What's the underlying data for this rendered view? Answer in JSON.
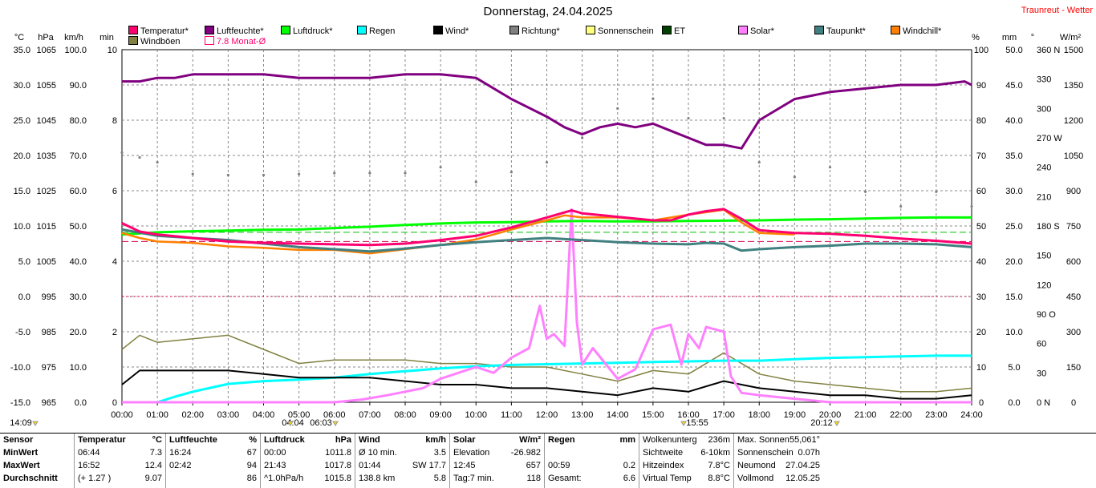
{
  "title": "Donnerstag, 24.04.2025",
  "brand": "Traunreut - Wetter",
  "units_left": [
    "°C",
    "hPa",
    "km/h",
    "min"
  ],
  "units_right": [
    "%",
    "mm",
    "°",
    "W/m²"
  ],
  "legend": [
    {
      "label": "Temperatur*",
      "color": "#ff0070"
    },
    {
      "label": "Luftfeuchte*",
      "color": "#800080"
    },
    {
      "label": "Luftdruck*",
      "color": "#00ff00"
    },
    {
      "label": "Regen",
      "color": "#00ffff"
    },
    {
      "label": "Wind*",
      "color": "#000000"
    },
    {
      "label": "Richtung*",
      "color": "#808080"
    },
    {
      "label": "Sonnenschein",
      "color": "#ffff80"
    },
    {
      "label": "ET",
      "color": "#004000"
    },
    {
      "label": "Solar*",
      "color": "#ff80ff"
    },
    {
      "label": "Taupunkt*",
      "color": "#408080"
    },
    {
      "label": "Windchill*",
      "color": "#ff8000"
    },
    {
      "label": "Windböen",
      "color": "#808040"
    },
    {
      "label": "7.8 Monat-Ø",
      "color": "#ff0070"
    }
  ],
  "chart_data": {
    "type": "line",
    "title": "Donnerstag, 24.04.2025",
    "x_ticks": [
      "00:00",
      "01:00",
      "02:00",
      "03:00",
      "04:00",
      "05:00",
      "06:00",
      "07:00",
      "08:00",
      "09:00",
      "10:00",
      "11:00",
      "12:00",
      "13:00",
      "14:00",
      "15:00",
      "16:00",
      "17:00",
      "18:00",
      "19:00",
      "20:00",
      "21:00",
      "22:00",
      "23:00",
      "24:00"
    ],
    "axes_left": {
      "temp_C": [
        "35.0",
        "30.0",
        "25.0",
        "20.0",
        "15.0",
        "10.0",
        "5.0",
        "0.0",
        "-5.0",
        "-10.0",
        "-15.0"
      ],
      "pressure_hPa": [
        "1065",
        "1055",
        "1045",
        "1035",
        "1025",
        "1015",
        "1005",
        "995",
        "985",
        "975",
        "965"
      ],
      "wind_kmh": [
        "100.0",
        "90.0",
        "80.0",
        "70.0",
        "60.0",
        "50.0",
        "40.0",
        "30.0",
        "20.0",
        "10.0",
        "0.0"
      ],
      "min": [
        "10",
        "8",
        "6",
        "4",
        "2",
        "0"
      ]
    },
    "axes_right": {
      "humidity_pct": [
        "100",
        "90",
        "80",
        "70",
        "60",
        "50",
        "40",
        "30",
        "20",
        "10",
        "0"
      ],
      "rain_mm": [
        "50.0",
        "45.0",
        "40.0",
        "35.0",
        "30.0",
        "25.0",
        "20.0",
        "15.0",
        "10.0",
        "5.0",
        "0.0"
      ],
      "dir_deg": [
        "360 N",
        "330",
        "300",
        "270 W",
        "240",
        "210",
        "180 S",
        "150",
        "120",
        "90 O",
        "60",
        "30",
        "0 N"
      ],
      "solar_wm2": [
        "1500",
        "1350",
        "1200",
        "1050",
        "900",
        "750",
        "600",
        "450",
        "300",
        "150",
        "0"
      ]
    },
    "temp_min": -15,
    "temp_max": 35,
    "series": [
      {
        "name": "Temperatur*",
        "x": [
          0,
          0.5,
          1,
          2,
          3,
          4,
          5,
          6,
          7,
          8,
          9,
          10,
          11,
          12,
          12.7,
          13,
          14,
          15,
          15.5,
          16,
          16.5,
          17,
          17.5,
          18,
          19,
          20,
          21,
          22,
          23,
          24
        ],
        "y": [
          10.4,
          9.2,
          8.8,
          8.3,
          7.8,
          7.6,
          7.5,
          7.4,
          7.3,
          7.5,
          8.0,
          8.6,
          9.8,
          11.2,
          12.2,
          11.8,
          11.3,
          10.8,
          10.8,
          11.6,
          12.1,
          12.4,
          11.0,
          9.4,
          9.0,
          8.9,
          8.6,
          8.2,
          7.9,
          7.5
        ]
      },
      {
        "name": "Luftfeuchte*",
        "x": [
          0,
          0.5,
          1,
          1.5,
          2,
          2.5,
          3,
          3.5,
          4,
          5,
          6,
          7,
          8,
          9,
          10,
          11,
          12,
          12.5,
          13,
          13.5,
          14,
          14.5,
          15,
          15.5,
          16,
          16.5,
          17,
          17.5,
          18,
          19,
          20,
          21,
          22,
          23,
          23.8,
          24
        ],
        "y": [
          91,
          91,
          92,
          92,
          93,
          93,
          93,
          93,
          93,
          92,
          92,
          92,
          93,
          93,
          92,
          86,
          81,
          78,
          76,
          78,
          79,
          78,
          79,
          77,
          75,
          73,
          73,
          72,
          80,
          86,
          88,
          89,
          90,
          90,
          91,
          90
        ]
      },
      {
        "name": "Luftdruck*",
        "x": [
          0,
          1,
          2,
          3,
          4,
          5,
          6,
          7,
          8,
          9,
          10,
          11,
          12,
          13,
          14,
          15,
          16,
          17,
          18,
          19,
          20,
          21,
          22,
          23,
          24
        ],
        "y": [
          1012.6,
          1013.2,
          1013.5,
          1013.7,
          1013.9,
          1014.0,
          1014.4,
          1014.8,
          1015.3,
          1015.7,
          1016.0,
          1016.1,
          1016.3,
          1016.4,
          1016.3,
          1016.3,
          1016.4,
          1016.5,
          1016.6,
          1016.8,
          1016.9,
          1017.1,
          1017.3,
          1017.4,
          1017.4
        ]
      },
      {
        "name": "Taupunkt*",
        "x": [
          0,
          1,
          2,
          3,
          4,
          5,
          6,
          7,
          8,
          9,
          10,
          11,
          12,
          13,
          14,
          15,
          16,
          16.5,
          17,
          17.5,
          18,
          19,
          20,
          21,
          22,
          23,
          24
        ],
        "y": [
          9.5,
          8.6,
          8.3,
          8.0,
          7.5,
          7.0,
          6.7,
          6.4,
          6.8,
          7.3,
          7.7,
          8.0,
          8.3,
          8.0,
          7.7,
          7.5,
          7.4,
          7.6,
          7.5,
          6.5,
          6.7,
          7.0,
          7.2,
          7.5,
          7.5,
          7.4,
          7.0
        ]
      },
      {
        "name": "Windchill*",
        "x": [
          0,
          0.5,
          1,
          2,
          3,
          4,
          5,
          6,
          7,
          8,
          9,
          10,
          11,
          12,
          12.5,
          13,
          14,
          15,
          16,
          17,
          17.5,
          18,
          18.5,
          19
        ],
        "y": [
          9.0,
          8.3,
          7.8,
          7.6,
          7.1,
          6.9,
          6.6,
          6.6,
          6.1,
          6.7,
          7.3,
          8.1,
          9.5,
          10.8,
          11.5,
          11.2,
          11.2,
          10.8,
          11.6,
          12.3,
          10.5,
          9.0,
          8.9,
          8.8
        ]
      },
      {
        "name": "Regen",
        "x": [
          0,
          1,
          1.5,
          2,
          3,
          4,
          5,
          6,
          7,
          8,
          9,
          10,
          11,
          12,
          13,
          14,
          15,
          16,
          17,
          18,
          19,
          20,
          21,
          22,
          23,
          24
        ],
        "y": [
          0,
          0,
          0.8,
          1.5,
          2.6,
          3.0,
          3.2,
          3.5,
          4.0,
          4.4,
          4.8,
          5.1,
          5.3,
          5.4,
          5.5,
          5.6,
          5.7,
          5.8,
          5.9,
          5.9,
          6.1,
          6.3,
          6.4,
          6.5,
          6.6,
          6.6
        ]
      },
      {
        "name": "Wind*",
        "x": [
          0,
          0.5,
          1,
          2,
          3,
          4,
          5,
          6,
          7,
          8,
          9,
          10,
          11,
          12,
          13,
          14,
          15,
          16,
          17,
          18,
          19,
          20,
          21,
          22,
          23,
          24
        ],
        "y": [
          5,
          9,
          9,
          9,
          9,
          8,
          7,
          7,
          7,
          6,
          5,
          5,
          4,
          4,
          3,
          2,
          4,
          3,
          6,
          4,
          3,
          2,
          2,
          1,
          1,
          2
        ]
      },
      {
        "name": "Windböen",
        "x": [
          0,
          0.5,
          1,
          2,
          3,
          4,
          5,
          6,
          7,
          8,
          9,
          10,
          11,
          12,
          13,
          14,
          15,
          16,
          17,
          18,
          19,
          20,
          21,
          22,
          23,
          24
        ],
        "y": [
          15,
          19,
          17,
          18,
          19,
          15,
          11,
          12,
          12,
          12,
          11,
          11,
          10,
          10,
          8,
          6,
          9,
          8,
          14,
          8,
          6,
          5,
          4,
          3,
          3,
          4
        ]
      },
      {
        "name": "Solar*",
        "x": [
          0,
          6,
          6.8,
          7.5,
          8.5,
          9,
          10,
          10.5,
          11,
          11.5,
          11.8,
          12,
          12.2,
          12.5,
          12.7,
          12.85,
          13,
          13.3,
          14,
          14.5,
          15,
          15.5,
          15.8,
          16,
          16.3,
          16.5,
          17,
          17.2,
          17.5,
          18,
          19,
          20,
          24
        ],
        "y": [
          0,
          0,
          12,
          30,
          60,
          100,
          150,
          125,
          190,
          230,
          410,
          270,
          290,
          240,
          820,
          340,
          160,
          230,
          100,
          140,
          310,
          330,
          160,
          290,
          230,
          320,
          300,
          110,
          40,
          30,
          15,
          0,
          0
        ]
      },
      {
        "name": "Richtung*",
        "x": [
          0,
          0.5,
          1,
          2,
          3,
          4,
          5,
          6,
          7,
          8,
          9,
          10,
          11,
          12,
          13,
          14,
          15,
          16,
          17,
          18,
          19,
          20,
          21,
          22,
          23,
          24
        ],
        "y": [
          255,
          250,
          245,
          233,
          232,
          232,
          233,
          234,
          234,
          234,
          240,
          225,
          235,
          245,
          270,
          300,
          310,
          290,
          290,
          245,
          230,
          240,
          215,
          200,
          215,
          200
        ]
      }
    ]
  },
  "markers": {
    "sunrise_left": "14:09",
    "moonset": "04:04",
    "sunrise": "06:03",
    "sunset_moon": "15:55",
    "sunset": "20:12"
  },
  "stats": {
    "sensor": {
      "header": "Sensor",
      "rows": [
        "MinWert",
        "MaxWert",
        "Durchschnitt"
      ]
    },
    "temp": {
      "header": "Temperatur",
      "unit": "°C",
      "rows": [
        [
          "06:44",
          "7.3"
        ],
        [
          "16:52",
          "12.4"
        ],
        [
          "(+ 1.27 )",
          "9.07"
        ]
      ]
    },
    "hum": {
      "header": "Luftfeuchte",
      "unit": "%",
      "rows": [
        [
          "16:24",
          "67"
        ],
        [
          "02:42",
          "94"
        ],
        [
          "",
          "86"
        ]
      ]
    },
    "press": {
      "header": "Luftdruck",
      "unit": "hPa",
      "rows": [
        [
          "00:00",
          "1011.8"
        ],
        [
          "21:43",
          "1017.8"
        ],
        [
          "^1.0hPa/h",
          "1015.8"
        ]
      ]
    },
    "wind": {
      "header": "Wind",
      "unit": "km/h",
      "rows": [
        [
          "Ø 10 min.",
          "3.5"
        ],
        [
          "01:44",
          "SW 17.7"
        ],
        [
          "138.8 km",
          "5.8"
        ]
      ]
    },
    "solar": {
      "header": "Solar",
      "unit": "W/m²",
      "rows": [
        [
          "Elevation",
          "-26.982"
        ],
        [
          "12:45",
          "657"
        ],
        [
          "Tag:7 min.",
          "118"
        ]
      ]
    },
    "rain": {
      "header": "Regen",
      "unit": "mm",
      "rows": [
        [
          "",
          ""
        ],
        [
          "00:59",
          "0.2"
        ],
        [
          "Gesamt:",
          "6.6"
        ]
      ]
    },
    "misc1": {
      "rows": [
        [
          "Wolkenunterg",
          "236m"
        ],
        [
          "Sichtweite",
          "6-10km"
        ],
        [
          "Hitzeindex",
          "7.8°C"
        ],
        [
          "Virtual Temp",
          "8.8°C"
        ]
      ]
    },
    "misc2": {
      "rows": [
        [
          "Max. Sonnen",
          "55,061°"
        ],
        [
          "Sonnenschein",
          "0.07h"
        ],
        [
          "Neumond",
          "27.04.25"
        ],
        [
          "Vollmond",
          "12.05.25"
        ]
      ]
    }
  }
}
